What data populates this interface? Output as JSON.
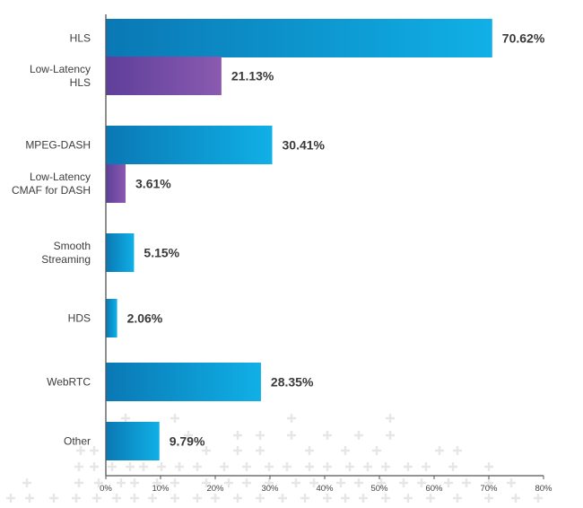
{
  "chart_data": {
    "type": "bar",
    "orientation": "horizontal",
    "categories": [
      [
        "HLS"
      ],
      [
        "Low-Latency",
        "HLS"
      ],
      [
        "MPEG-DASH"
      ],
      [
        "Low-Latency",
        "CMAF for DASH"
      ],
      [
        "Smooth",
        "Streaming"
      ],
      [
        "HDS"
      ],
      [
        "WebRTC"
      ],
      [
        "Other"
      ]
    ],
    "values": [
      70.62,
      21.13,
      30.41,
      3.61,
      5.15,
      2.06,
      28.35,
      9.79
    ],
    "value_labels": [
      "70.62%",
      "21.13%",
      "30.41%",
      "3.61%",
      "5.15%",
      "2.06%",
      "28.35%",
      "9.79%"
    ],
    "bar_colors": [
      "blue",
      "purple",
      "blue",
      "purple",
      "blue",
      "blue",
      "blue",
      "blue"
    ],
    "xlim": [
      0,
      80
    ],
    "xticks": [
      "0%",
      "10%",
      "20%",
      "30%",
      "40%",
      "50%",
      "60%",
      "70%",
      "80%"
    ],
    "colors": {
      "blue_start": "#0a78b4",
      "blue_end": "#10b0e6",
      "purple_start": "#5e3f9a",
      "purple_end": "#8a5ab0",
      "axis": "#555555"
    },
    "grid": false,
    "legend": "none"
  }
}
